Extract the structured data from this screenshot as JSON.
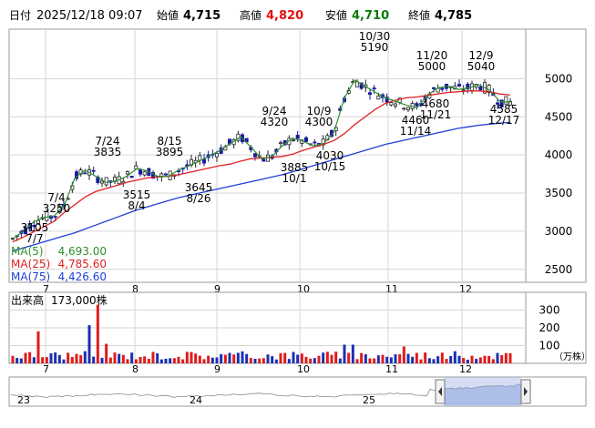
{
  "header": {
    "date_label": "日付",
    "datetime": "2025/12/18 09:07",
    "open_label": "始値",
    "open": "4,715",
    "high_label": "高値",
    "high": "4,820",
    "low_label": "安値",
    "low": "4,710",
    "close_label": "終値",
    "close": "4,785"
  },
  "colors": {
    "up": "#e81010",
    "down": "#0a7a0a",
    "ma5": "#2f8f2f",
    "ma25": "#e02020",
    "ma75": "#1f3fd8",
    "candle_down": "#1a1aa0",
    "volume_up": "#e01b1b",
    "volume_down": "#1c2fb0"
  },
  "ma_legend": [
    {
      "label": "MA(5)",
      "value": "4,693.00",
      "color": "#2f8f2f"
    },
    {
      "label": "MA(25)",
      "value": "4,785.60",
      "color": "#e02020"
    },
    {
      "label": "MA(75)",
      "value": "4,426.60",
      "color": "#1f3fd8"
    }
  ],
  "volume_label": "出来高",
  "volume_value": "173,000株",
  "volume_unit": "（万株）",
  "chart_data": {
    "type": "line",
    "price_axis_ticks": [
      "5000",
      "4500",
      "4000",
      "3500",
      "3000",
      "2500"
    ],
    "price_ylim": [
      2330,
      5650
    ],
    "volume_axis_ticks": [
      "300",
      "200",
      "100"
    ],
    "volume_ylim": [
      0,
      400
    ],
    "month_labels": [
      "7",
      "8",
      "9",
      "10",
      "11",
      "12"
    ],
    "navigator_labels": [
      "23",
      "24",
      "25"
    ],
    "annotations": [
      {
        "label": "7/7",
        "value": "3105"
      },
      {
        "label": "7/4",
        "value": "3250"
      },
      {
        "label": "7/24",
        "value": "3835"
      },
      {
        "label": "8/4",
        "value": "3515"
      },
      {
        "label": "8/15",
        "value": "3895"
      },
      {
        "label": "8/26",
        "value": "3645"
      },
      {
        "label": "9/24",
        "value": "4320"
      },
      {
        "label": "10/1",
        "value": "3885"
      },
      {
        "label": "10/9",
        "value": "4300"
      },
      {
        "label": "10/15",
        "value": "4030"
      },
      {
        "label": "10/30",
        "value": "5190"
      },
      {
        "label": "11/14",
        "value": "4460"
      },
      {
        "label": "11/20",
        "value": "5000"
      },
      {
        "label": "11/21",
        "value": "4680"
      },
      {
        "label": "12/9",
        "value": "5040"
      },
      {
        "label": "12/17",
        "value": "4585"
      }
    ],
    "ma5": [
      2900,
      3000,
      3120,
      3180,
      3200,
      3350,
      3700,
      3800,
      3720,
      3640,
      3660,
      3720,
      3820,
      3790,
      3720,
      3720,
      3800,
      3860,
      3920,
      3990,
      4060,
      4150,
      4240,
      4100,
      3950,
      3980,
      4120,
      4220,
      4180,
      4120,
      4150,
      4300,
      4750,
      4980,
      4900,
      4820,
      4750,
      4700,
      4650,
      4620,
      4780,
      4880,
      4900,
      4860,
      4880,
      4920,
      4850,
      4700,
      4693
    ],
    "ma25": [
      2860,
      2920,
      2990,
      3060,
      3130,
      3250,
      3350,
      3450,
      3520,
      3560,
      3600,
      3640,
      3670,
      3700,
      3710,
      3720,
      3740,
      3770,
      3800,
      3830,
      3860,
      3880,
      3920,
      3950,
      3960,
      3970,
      3980,
      4010,
      4060,
      4100,
      4140,
      4190,
      4280,
      4400,
      4500,
      4600,
      4680,
      4720,
      4750,
      4760,
      4780,
      4800,
      4820,
      4830,
      4840,
      4840,
      4830,
      4800,
      4785.6
    ],
    "ma75": [
      2740,
      2780,
      2820,
      2860,
      2900,
      2940,
      2980,
      3030,
      3080,
      3130,
      3180,
      3230,
      3280,
      3320,
      3360,
      3400,
      3440,
      3470,
      3500,
      3530,
      3560,
      3590,
      3620,
      3650,
      3680,
      3710,
      3740,
      3780,
      3820,
      3860,
      3900,
      3940,
      3980,
      4020,
      4060,
      4100,
      4140,
      4170,
      4200,
      4230,
      4260,
      4290,
      4320,
      4350,
      4370,
      4390,
      4405,
      4418,
      4426.6
    ]
  }
}
